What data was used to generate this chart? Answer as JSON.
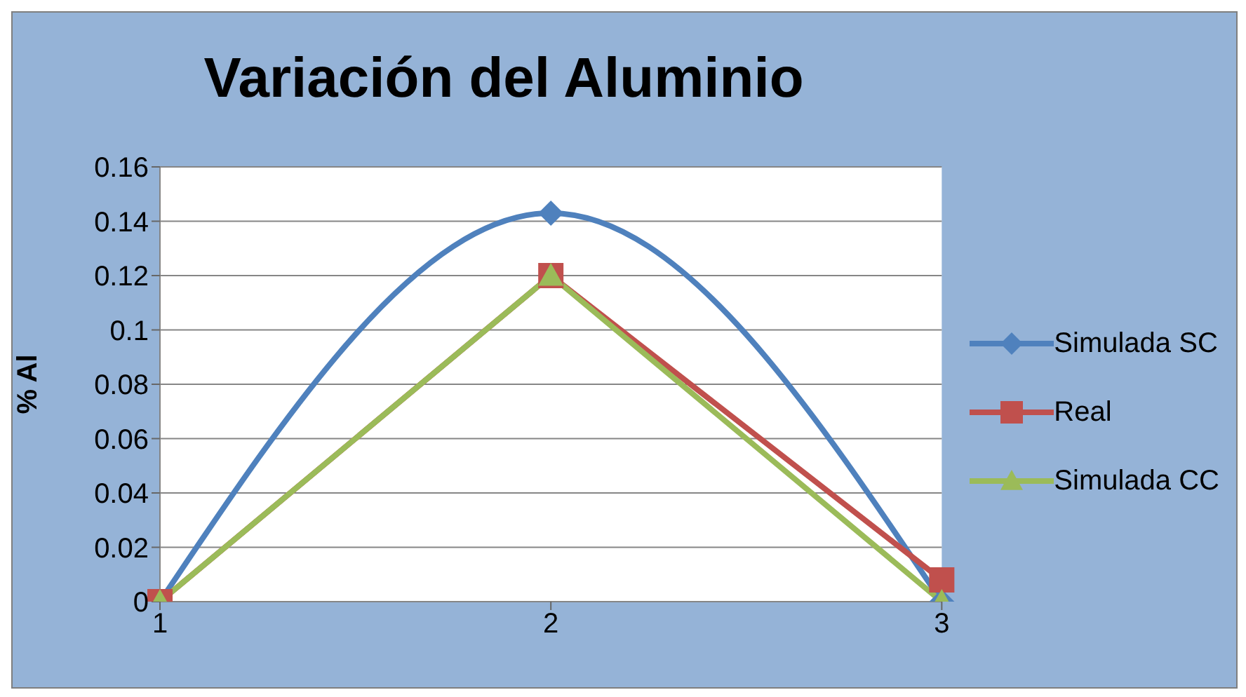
{
  "chart_data": {
    "type": "line",
    "title": "Variación del Aluminio",
    "ylabel": "% Al",
    "categories": [
      "1",
      "2",
      "3"
    ],
    "series": [
      {
        "name": "Simulada SC",
        "color": "#4f81bd",
        "values": [
          0,
          0.143,
          0
        ],
        "marker": "diamond"
      },
      {
        "name": "Real",
        "color": "#c0504d",
        "values": [
          0,
          0.12,
          0.008
        ],
        "marker": "square"
      },
      {
        "name": "Simulada CC",
        "color": "#9bbb59",
        "values": [
          0,
          0.12,
          0
        ],
        "marker": "triangle"
      }
    ],
    "ylim": [
      0,
      0.16
    ],
    "yticks": [
      0,
      0.02,
      0.04,
      0.06,
      0.08,
      0.1,
      0.12,
      0.14,
      0.16
    ],
    "grid": "y",
    "legend": "right",
    "line_style": "solid"
  }
}
